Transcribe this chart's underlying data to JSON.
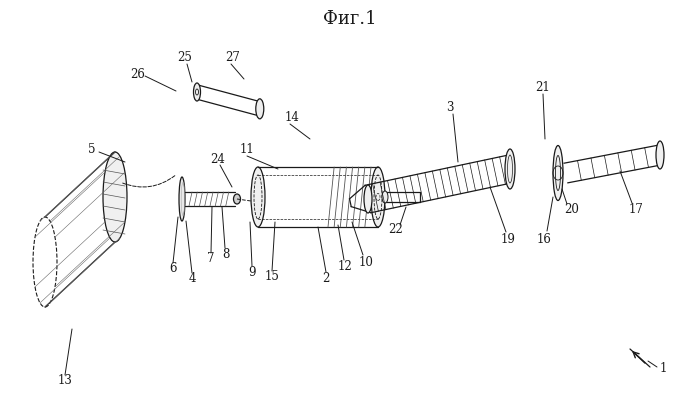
{
  "bg_color": "#ffffff",
  "line_color": "#1a1a1a",
  "caption": "Фиг.1",
  "lw": 0.9
}
